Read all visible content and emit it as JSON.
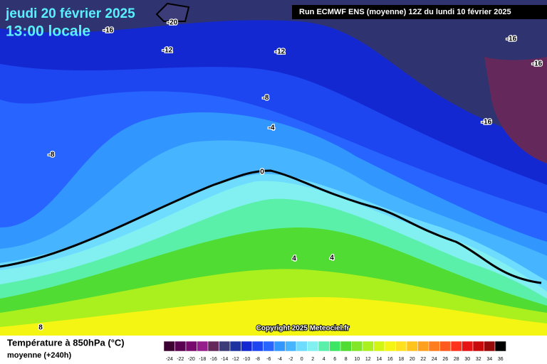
{
  "header": {
    "date": "jeudi 20 février 2025",
    "time": "13:00 locale",
    "run": "Run ECMWF ENS (moyenne) 12Z du lundi 10 février 2025"
  },
  "map": {
    "contour_labels": [
      -20,
      -16,
      -12,
      -12,
      -16,
      -16,
      -8,
      -4,
      -16,
      -8,
      0,
      4,
      4,
      8
    ],
    "copyright": "Copyright 2025 Meteociel.fr"
  },
  "legend": {
    "title": "Température à 850hPa (°C)",
    "subtitle": "moyenne  (+240h)",
    "labels": [
      -24,
      -22,
      -20,
      -18,
      -16,
      -14,
      -12,
      -10,
      -8,
      -6,
      -4,
      -2,
      0,
      2,
      4,
      6,
      8,
      10,
      12,
      14,
      16,
      18,
      20,
      22,
      24,
      26,
      28,
      30,
      32,
      34,
      36
    ],
    "colors": [
      "#3c0032",
      "#5a0050",
      "#780a6e",
      "#961e8c",
      "#64285a",
      "#3c3c78",
      "#1e32a0",
      "#1428d2",
      "#1e46f0",
      "#2864ff",
      "#3296ff",
      "#46b4ff",
      "#6edcff",
      "#82f0f0",
      "#5af0aa",
      "#3ce664",
      "#50dc32",
      "#82e628",
      "#aaf01e",
      "#d2f514",
      "#f5f514",
      "#ffe11e",
      "#ffc31e",
      "#ffa01e",
      "#ff7d1e",
      "#ff5a1e",
      "#ff321e",
      "#e61414",
      "#c80a0a",
      "#960a0a",
      "#000000"
    ]
  }
}
